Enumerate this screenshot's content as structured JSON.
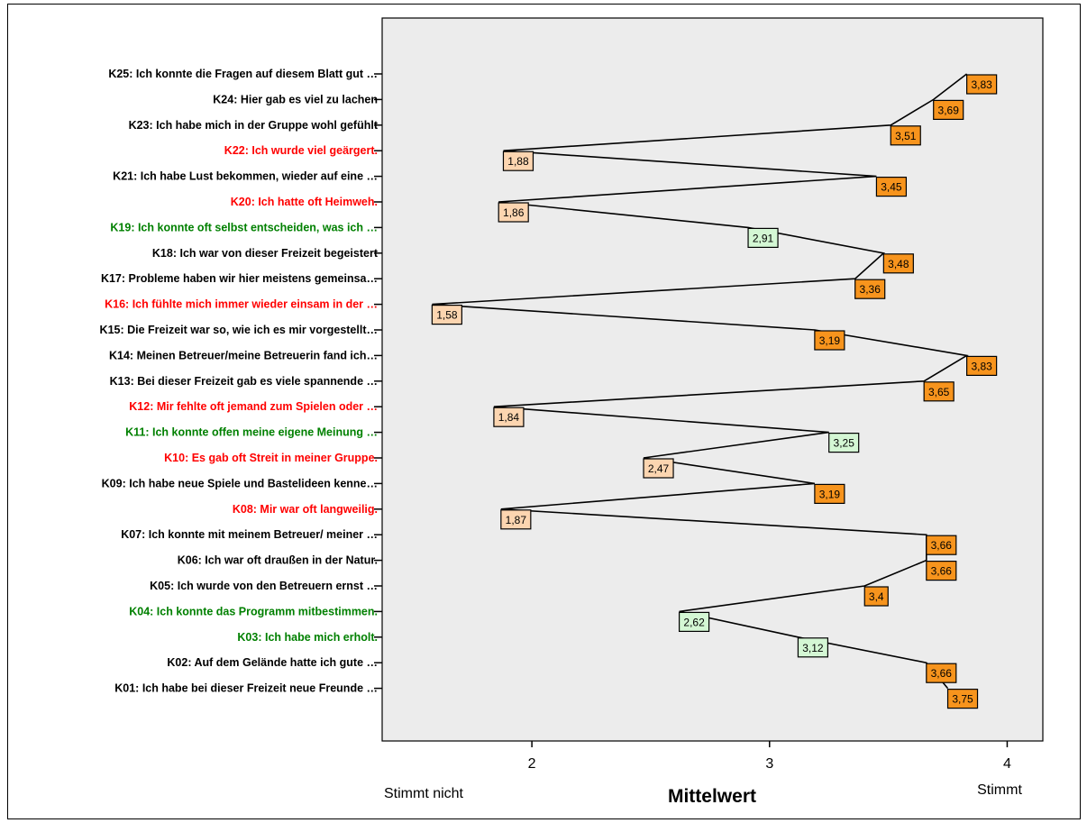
{
  "chart_data": {
    "type": "line",
    "orientation": "horizontal-profile",
    "xlabel": "Mittelwert",
    "x_left_anchor": "Stimmt nicht",
    "x_right_anchor": "Stimmt",
    "xlim": [
      1.37,
      4.15
    ],
    "xticks": [
      "2",
      "3",
      "4"
    ],
    "grid": false,
    "legend": "none",
    "colors": {
      "negative_item_text": "#ff0000",
      "participation_item_text": "#008000",
      "default_item_text": "#000000",
      "box_orange": "#f7941d",
      "box_peach": "#fcd5b0",
      "box_green": "#d4f7d4",
      "plot_bg": "#ececec",
      "line": "#000000"
    },
    "items": [
      {
        "label": "K25: Ich konnte die Fragen auf diesem Blatt gut …",
        "value": 3.83,
        "value_label": "3,83",
        "group": "default"
      },
      {
        "label": "K24: Hier gab es viel zu lachen",
        "value": 3.69,
        "value_label": "3,69",
        "group": "default"
      },
      {
        "label": "K23: Ich habe mich in der Gruppe wohl gefühlt",
        "value": 3.51,
        "value_label": "3,51",
        "group": "default"
      },
      {
        "label": "K22: Ich wurde viel geärgert.",
        "value": 1.88,
        "value_label": "1,88",
        "group": "negative"
      },
      {
        "label": "K21: Ich habe Lust bekommen, wieder auf eine …",
        "value": 3.45,
        "value_label": "3,45",
        "group": "default"
      },
      {
        "label": "K20: Ich hatte oft Heimweh.",
        "value": 1.86,
        "value_label": "1,86",
        "group": "negative"
      },
      {
        "label": "K19: Ich konnte oft selbst entscheiden, was ich …",
        "value": 2.91,
        "value_label": "2,91",
        "group": "participation"
      },
      {
        "label": "K18: Ich war von dieser Freizeit begeistert",
        "value": 3.48,
        "value_label": "3,48",
        "group": "default"
      },
      {
        "label": "K17: Probleme haben wir hier meistens gemeinsa…",
        "value": 3.36,
        "value_label": "3,36",
        "group": "default"
      },
      {
        "label": "K16: Ich fühlte mich immer wieder einsam in der …",
        "value": 1.58,
        "value_label": "1,58",
        "group": "negative"
      },
      {
        "label": "K15: Die Freizeit war so, wie ich es mir vorgestellt…",
        "value": 3.19,
        "value_label": "3,19",
        "group": "default"
      },
      {
        "label": "K14: Meinen Betreuer/meine Betreuerin fand ich…",
        "value": 3.83,
        "value_label": "3,83",
        "group": "default"
      },
      {
        "label": "K13: Bei dieser Freizeit gab es viele spannende …",
        "value": 3.65,
        "value_label": "3,65",
        "group": "default"
      },
      {
        "label": "K12: Mir fehlte oft jemand zum Spielen oder …",
        "value": 1.84,
        "value_label": "1,84",
        "group": "negative"
      },
      {
        "label": "K11: Ich konnte offen meine eigene Meinung …",
        "value": 3.25,
        "value_label": "3,25",
        "group": "participation"
      },
      {
        "label": "K10: Es gab oft Streit in meiner Gruppe.",
        "value": 2.47,
        "value_label": "2,47",
        "group": "negative"
      },
      {
        "label": "K09: Ich habe neue Spiele und Bastelideen kenne…",
        "value": 3.19,
        "value_label": "3,19",
        "group": "default"
      },
      {
        "label": "K08: Mir war oft langweilig.",
        "value": 1.87,
        "value_label": "1,87",
        "group": "negative"
      },
      {
        "label": "K07: Ich konnte mit meinem Betreuer/ meiner …",
        "value": 3.66,
        "value_label": "3,66",
        "group": "default"
      },
      {
        "label": "K06: Ich war oft draußen in der Natur.",
        "value": 3.66,
        "value_label": "3,66",
        "group": "default"
      },
      {
        "label": "K05: Ich wurde von den Betreuern ernst …",
        "value": 3.4,
        "value_label": "3,4",
        "group": "default"
      },
      {
        "label": "K04: Ich konnte das Programm mitbestimmen.",
        "value": 2.62,
        "value_label": "2,62",
        "group": "participation"
      },
      {
        "label": "K03: Ich habe mich erholt.",
        "value": 3.12,
        "value_label": "3,12",
        "group": "participation"
      },
      {
        "label": "K02: Auf dem Gelände hatte ich gute …",
        "value": 3.66,
        "value_label": "3,66",
        "group": "default"
      },
      {
        "label": "K01: Ich habe bei dieser Freizeit neue Freunde …",
        "value": 3.75,
        "value_label": "3,75",
        "group": "default"
      }
    ]
  }
}
